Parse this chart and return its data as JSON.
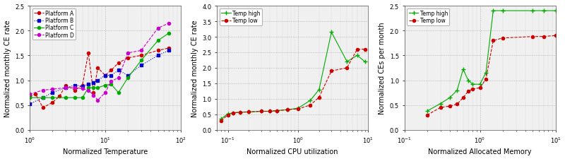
{
  "plot1": {
    "xlabel": "Normalized Temperature",
    "ylabel": "Normalized monthly CE rate",
    "xlim": [
      1,
      100
    ],
    "ylim": [
      0,
      2.5
    ],
    "yticks": [
      0,
      0.5,
      1.0,
      1.5,
      2.0,
      2.5
    ],
    "series": {
      "Platform A": {
        "color": "#cc0000",
        "marker": "o",
        "markersize": 3,
        "linestyle": "--",
        "linewidth": 0.8,
        "x": [
          1.0,
          1.2,
          1.5,
          2.0,
          2.5,
          3.0,
          4.0,
          5.0,
          6.0,
          7.0,
          8.0,
          10.0,
          12.0,
          15.0,
          20.0,
          30.0,
          50.0,
          70.0
        ],
        "y": [
          0.68,
          0.72,
          0.45,
          0.55,
          0.68,
          0.9,
          0.8,
          0.9,
          1.55,
          0.75,
          1.25,
          1.1,
          1.2,
          1.35,
          1.45,
          1.5,
          1.6,
          1.65
        ]
      },
      "Platform B": {
        "color": "#0000cc",
        "marker": "s",
        "markersize": 3,
        "linestyle": ":",
        "linewidth": 0.8,
        "x": [
          1.0,
          1.5,
          2.0,
          3.0,
          4.0,
          5.0,
          6.0,
          7.0,
          8.0,
          10.0,
          12.0,
          15.0,
          20.0,
          30.0,
          50.0,
          70.0
        ],
        "y": [
          0.52,
          0.65,
          0.75,
          0.85,
          0.9,
          0.88,
          0.92,
          0.95,
          1.0,
          1.1,
          1.1,
          1.2,
          1.1,
          1.3,
          1.5,
          1.6
        ]
      },
      "Platform C": {
        "color": "#00aa00",
        "marker": "o",
        "markersize": 3,
        "linestyle": "-",
        "linewidth": 0.8,
        "x": [
          1.0,
          1.5,
          2.0,
          3.0,
          4.0,
          5.0,
          6.0,
          7.0,
          8.0,
          10.0,
          12.0,
          15.0,
          20.0,
          30.0,
          50.0,
          70.0
        ],
        "y": [
          0.65,
          0.65,
          0.65,
          0.65,
          0.65,
          0.65,
          0.85,
          0.85,
          0.85,
          0.9,
          0.92,
          0.75,
          1.05,
          1.4,
          1.8,
          1.95
        ]
      },
      "Platform D": {
        "color": "#cc00cc",
        "marker": "o",
        "markersize": 3,
        "linestyle": "--",
        "linewidth": 0.8,
        "x": [
          1.0,
          1.5,
          2.0,
          3.0,
          4.0,
          5.0,
          6.0,
          7.0,
          8.0,
          10.0,
          12.0,
          15.0,
          20.0,
          30.0,
          50.0,
          70.0
        ],
        "y": [
          0.72,
          0.8,
          0.82,
          0.85,
          0.85,
          0.83,
          0.8,
          0.7,
          0.6,
          0.75,
          0.98,
          1.05,
          1.55,
          1.6,
          2.05,
          2.15
        ]
      }
    }
  },
  "plot2": {
    "xlabel": "Normalized CPU utilization",
    "ylabel": "Normalized monthly CE rate",
    "xlim": [
      0.07,
      10
    ],
    "ylim": [
      0,
      4
    ],
    "yticks": [
      0,
      0.5,
      1.0,
      1.5,
      2.0,
      2.5,
      3.0,
      3.5,
      4.0
    ],
    "series": {
      "Temp high": {
        "color": "#00aa00",
        "marker": "+",
        "markersize": 5,
        "linestyle": "-",
        "linewidth": 0.8,
        "x": [
          0.08,
          0.1,
          0.12,
          0.15,
          0.2,
          0.3,
          0.4,
          0.5,
          0.7,
          1.0,
          1.5,
          2.0,
          3.0,
          5.0,
          7.0,
          9.0
        ],
        "y": [
          0.35,
          0.52,
          0.55,
          0.57,
          0.58,
          0.6,
          0.6,
          0.62,
          0.65,
          0.7,
          0.95,
          1.3,
          3.15,
          2.2,
          2.4,
          2.2
        ]
      },
      "Temp low": {
        "color": "#cc0000",
        "marker": "o",
        "markersize": 3,
        "linestyle": "--",
        "linewidth": 0.8,
        "x": [
          0.08,
          0.1,
          0.12,
          0.15,
          0.2,
          0.3,
          0.4,
          0.5,
          0.7,
          1.0,
          1.5,
          2.0,
          3.0,
          5.0,
          7.0,
          9.0
        ],
        "y": [
          0.3,
          0.48,
          0.55,
          0.57,
          0.58,
          0.6,
          0.6,
          0.62,
          0.65,
          0.68,
          0.8,
          1.05,
          1.9,
          2.0,
          2.6,
          2.6
        ]
      }
    }
  },
  "plot3": {
    "xlabel": "Normalized Allocated Memory",
    "ylabel": "Normalized CEs per month",
    "xlim": [
      0.1,
      10
    ],
    "ylim": [
      0,
      2.5
    ],
    "yticks": [
      0,
      0.5,
      1.0,
      1.5,
      2.0,
      2.5
    ],
    "series": {
      "Temp high": {
        "color": "#00aa00",
        "marker": "+",
        "markersize": 5,
        "linestyle": "-",
        "linewidth": 0.8,
        "x": [
          0.2,
          0.3,
          0.4,
          0.5,
          0.6,
          0.7,
          0.8,
          1.0,
          1.2,
          1.5,
          2.0,
          5.0,
          7.0,
          10.0
        ],
        "y": [
          0.38,
          0.53,
          0.65,
          0.8,
          1.22,
          1.0,
          0.92,
          0.92,
          1.15,
          2.4,
          2.4,
          2.4,
          2.4,
          2.4
        ]
      },
      "Temp low": {
        "color": "#cc0000",
        "marker": "o",
        "markersize": 3,
        "linestyle": "--",
        "linewidth": 0.8,
        "x": [
          0.2,
          0.3,
          0.4,
          0.5,
          0.6,
          0.7,
          0.8,
          1.0,
          1.2,
          1.5,
          2.0,
          5.0,
          7.0,
          10.0
        ],
        "y": [
          0.3,
          0.45,
          0.48,
          0.52,
          0.65,
          0.78,
          0.82,
          0.85,
          1.02,
          1.8,
          1.85,
          1.88,
          1.88,
          1.9
        ]
      }
    }
  },
  "bg_color": "#ffffff",
  "plot_bg": "#f0f0f0",
  "grid_color": "#888888",
  "grid_linestyle": ":"
}
